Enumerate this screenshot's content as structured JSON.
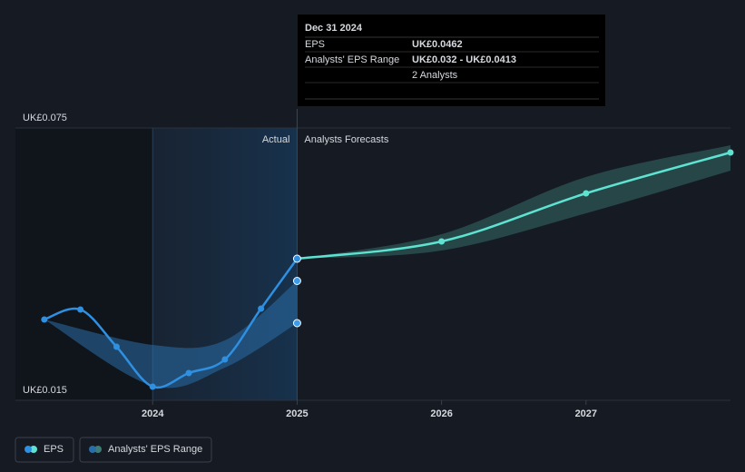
{
  "chart_data": {
    "type": "line",
    "xlim": [
      2023.05,
      2028
    ],
    "xticks": [
      2024,
      2025,
      2026,
      2027
    ],
    "ylim": [
      0.015,
      0.075
    ],
    "yticks": [
      {
        "value": 0.015,
        "label": "UK£0.015"
      },
      {
        "value": 0.075,
        "label": "UK£0.075"
      }
    ],
    "divider_labels": {
      "left": "Actual",
      "right": "Analysts Forecasts"
    },
    "series": [
      {
        "name": "EPS",
        "color": "#2f8fe0",
        "x": [
          2023.25,
          2023.5,
          2023.75,
          2024,
          2024.25,
          2024.5,
          2024.75,
          2025
        ],
        "values": [
          0.0328,
          0.035,
          0.0268,
          0.018,
          0.021,
          0.024,
          0.0352,
          0.0462
        ],
        "forecast_color": "#5ee3d2",
        "forecast_x": [
          2025,
          2026,
          2027,
          2028
        ],
        "forecast_values": [
          0.0462,
          0.05,
          0.0606,
          0.0696
        ]
      },
      {
        "name": "Analysts' EPS Range",
        "color": "#2a6ea8",
        "x": [
          2023.25,
          2024,
          2024.5,
          2025
        ],
        "low": [
          0.0328,
          0.0182,
          0.0222,
          0.032
        ],
        "high": [
          0.0328,
          0.0272,
          0.0282,
          0.0413
        ],
        "forecast_color": "#3e7d76",
        "forecast_x": [
          2025,
          2026,
          2027,
          2028
        ],
        "forecast_low": [
          0.0462,
          0.048,
          0.0562,
          0.0656
        ],
        "forecast_high": [
          0.0462,
          0.0516,
          0.0642,
          0.0712
        ]
      }
    ],
    "tooltip": {
      "date": "Dec 31 2024",
      "rows": [
        {
          "label": "EPS",
          "value": "UK£0.0462"
        },
        {
          "label": "Analysts' EPS Range",
          "value": "UK£0.032 - UK£0.0413"
        },
        {
          "label": "",
          "value": "2 Analysts"
        }
      ]
    }
  }
}
